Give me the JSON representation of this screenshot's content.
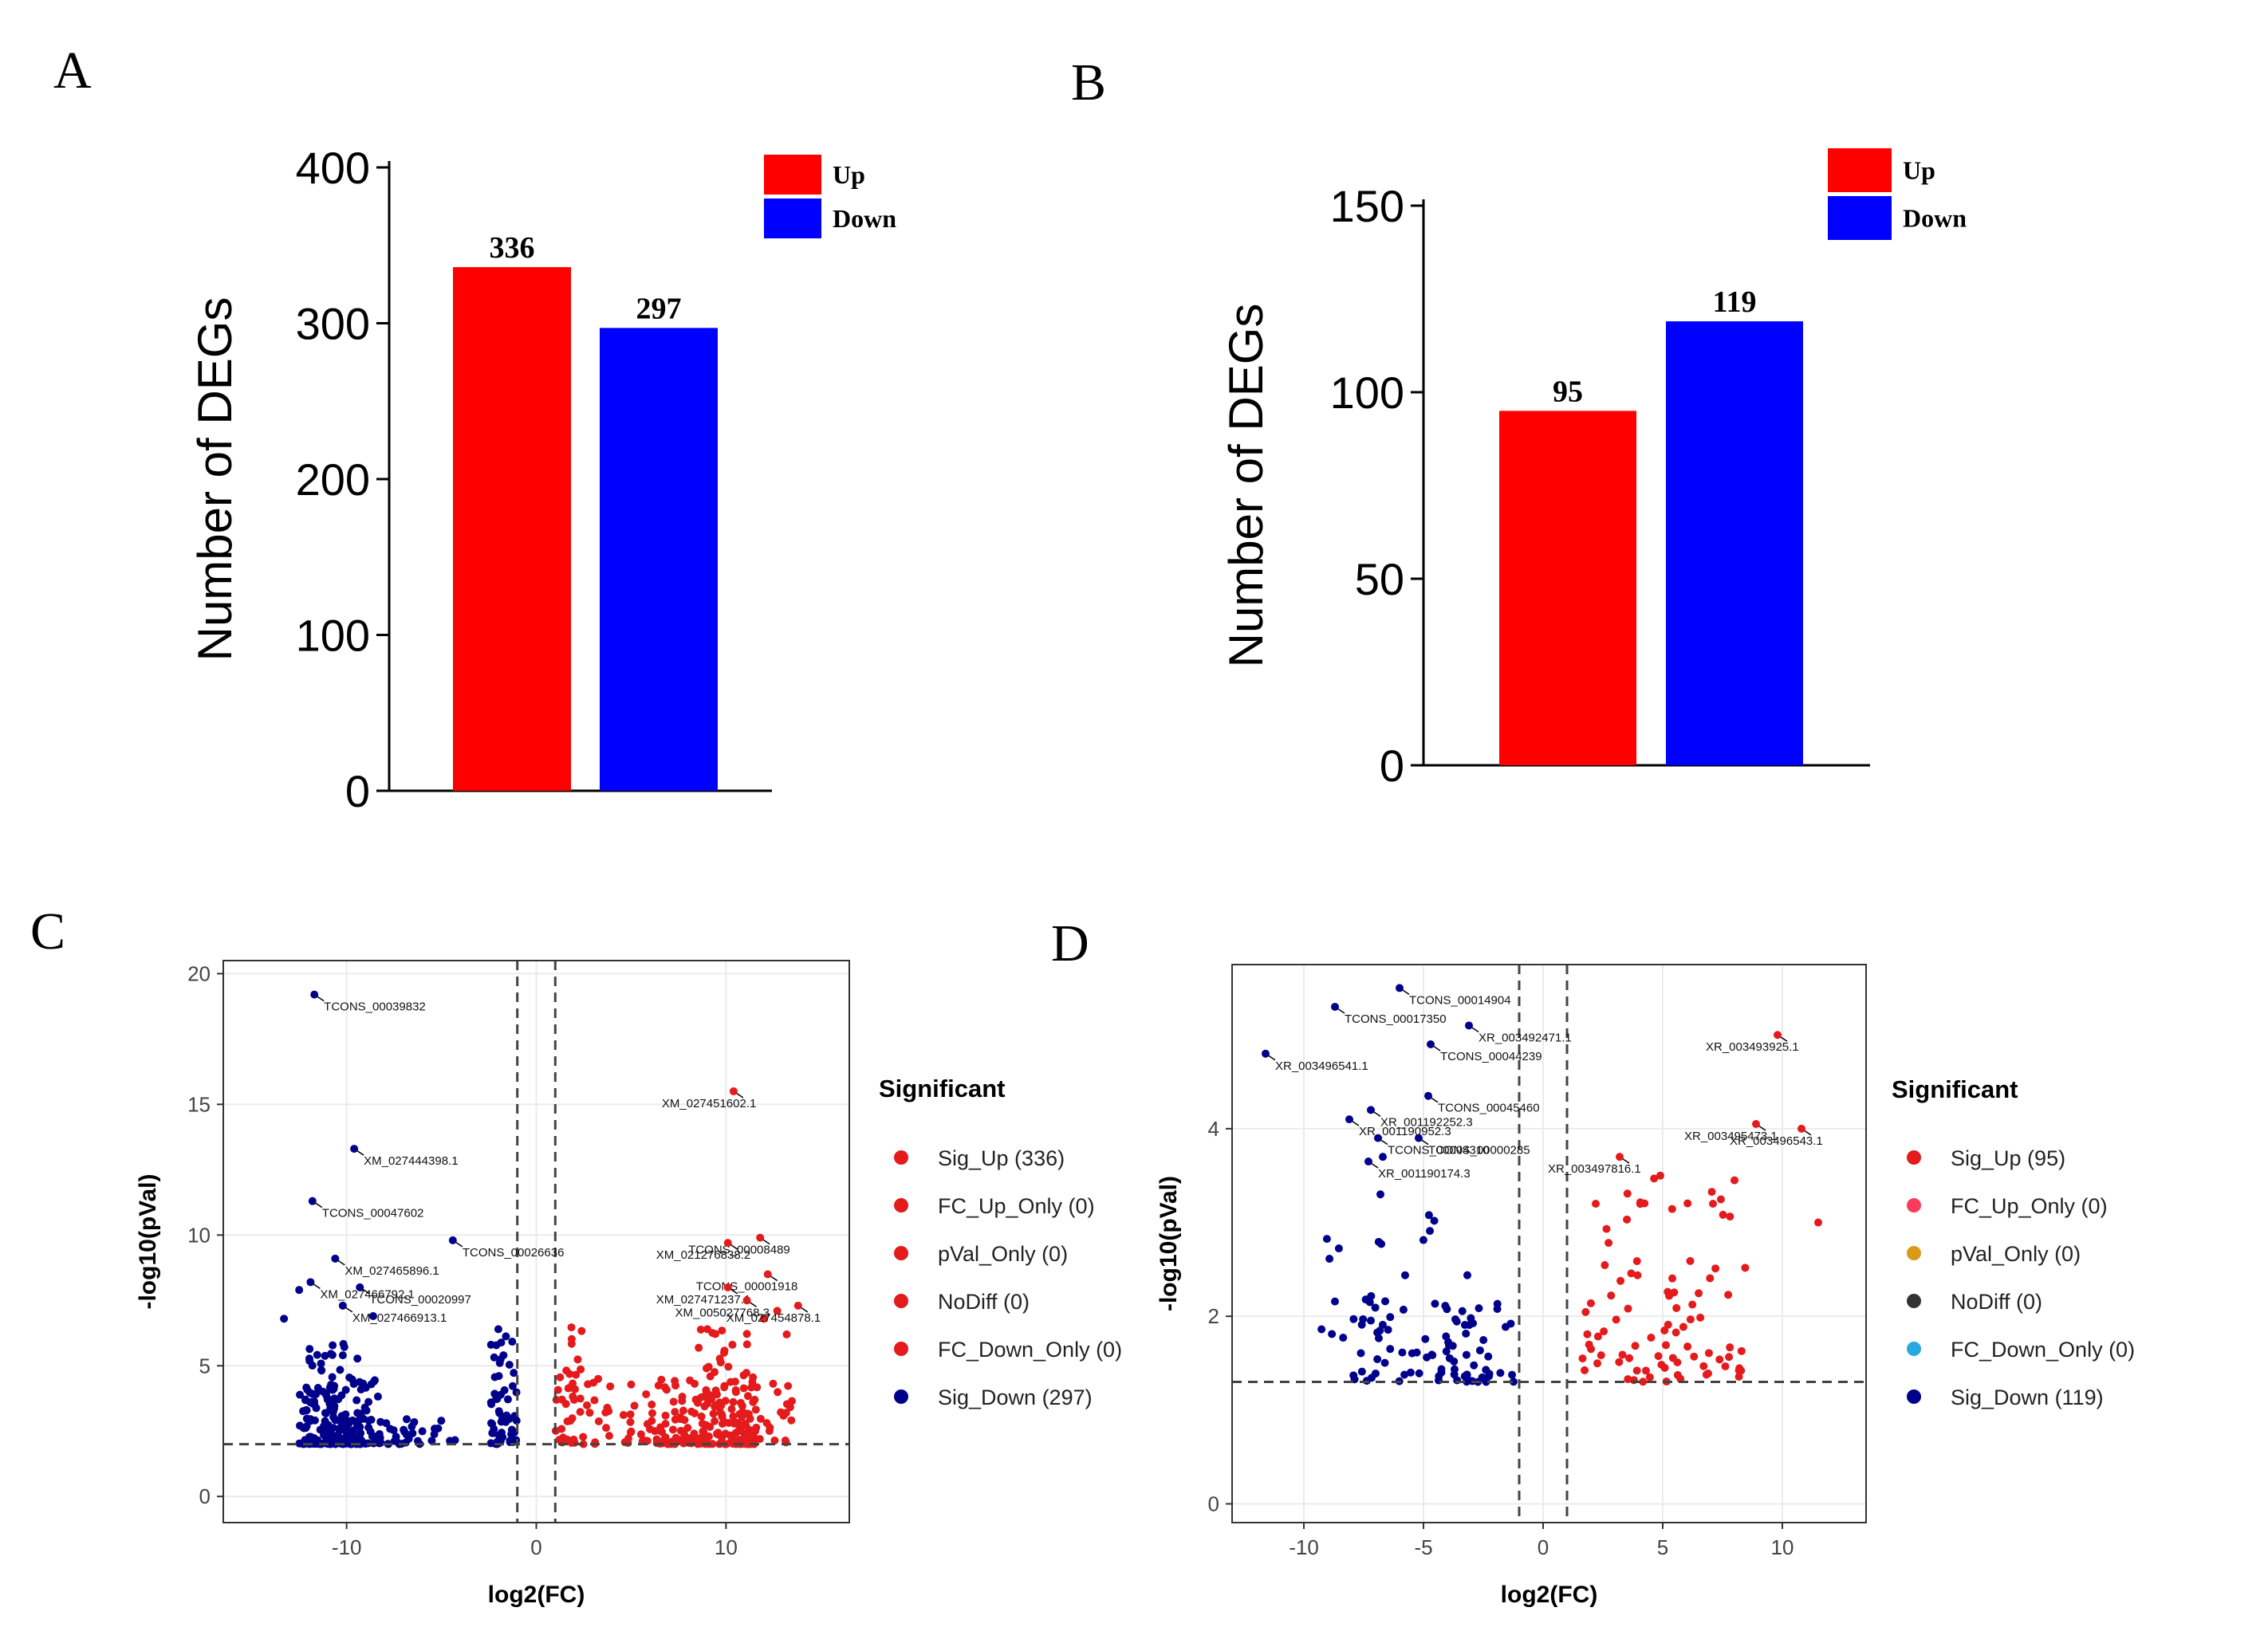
{
  "colors": {
    "up": "#ff0000",
    "down": "#0000ff",
    "sig_up": "#e41a1c",
    "sig_down": "#00008b",
    "fc_up_only": "#ff3b5c",
    "pval_only": "#d99a1a",
    "nodiff": "#333333",
    "fc_down_only": "#29a8e0",
    "axis": "#000000",
    "grid": "#ebebeb"
  },
  "chart_data": [
    {
      "panel": "A",
      "type": "bar",
      "categories": [
        "Up",
        "Down"
      ],
      "values": [
        336,
        297
      ],
      "value_labels": [
        "336",
        "297"
      ],
      "ylabel": "Number of DEGs",
      "ylim": [
        0,
        400
      ],
      "yticks": [
        0,
        100,
        200,
        300,
        400
      ],
      "ytick_labels": [
        "0",
        "100",
        "200",
        "300",
        "400"
      ],
      "legend": [
        {
          "label": "Up",
          "color_key": "up"
        },
        {
          "label": "Down",
          "color_key": "down"
        }
      ],
      "legend_position": "top-right"
    },
    {
      "panel": "B",
      "type": "bar",
      "categories": [
        "Up",
        "Down"
      ],
      "values": [
        95,
        119
      ],
      "value_labels": [
        "95",
        "119"
      ],
      "ylabel": "Number of DEGs",
      "ylim": [
        0,
        150
      ],
      "yticks": [
        0,
        50,
        100,
        150
      ],
      "ytick_labels": [
        "0",
        "50",
        "100",
        "150"
      ],
      "legend": [
        {
          "label": "Up",
          "color_key": "up"
        },
        {
          "label": "Down",
          "color_key": "down"
        }
      ],
      "legend_position": "top-right"
    },
    {
      "panel": "C",
      "type": "scatter",
      "subtype": "volcano",
      "xlabel": "log2(FC)",
      "ylabel": "-log10(pVal)",
      "xlim": [
        -16.5,
        16.5
      ],
      "ylim": [
        -1,
        20.5
      ],
      "xticks": [
        -10,
        0,
        10
      ],
      "xtick_labels": [
        "-10",
        "0",
        "10"
      ],
      "yticks": [
        0,
        5,
        10,
        15,
        20
      ],
      "ytick_labels": [
        "0",
        "5",
        "10",
        "15",
        "20"
      ],
      "thresholds": {
        "vlines": [
          -1,
          1
        ],
        "hline": 2
      },
      "legend_title": "Significant",
      "legend": [
        {
          "label": "Sig_Up (336)",
          "color_key": "sig_up"
        },
        {
          "label": "FC_Up_Only (0)",
          "color_key": "sig_up"
        },
        {
          "label": "pVal_Only (0)",
          "color_key": "sig_up"
        },
        {
          "label": "NoDiff (0)",
          "color_key": "sig_up"
        },
        {
          "label": "FC_Down_Only (0)",
          "color_key": "sig_up"
        },
        {
          "label": "Sig_Down (297)",
          "color_key": "sig_down"
        }
      ],
      "cluster_seed": 11,
      "clusters": [
        {
          "group": "down",
          "n": 150,
          "x": [
            -12.5,
            -8.2
          ],
          "y": [
            2.0,
            4.5
          ],
          "skew": 2.2
        },
        {
          "group": "down",
          "n": 60,
          "x": [
            -12.0,
            -9.0
          ],
          "y": [
            2.0,
            6.0
          ],
          "skew": 1.6
        },
        {
          "group": "down",
          "n": 30,
          "x": [
            -8.2,
            -4.0
          ],
          "y": [
            2.0,
            3.0
          ],
          "skew": 1.5
        },
        {
          "group": "down",
          "n": 55,
          "x": [
            -2.4,
            -1.0
          ],
          "y": [
            2.0,
            6.3
          ],
          "skew": 1.8
        },
        {
          "group": "up",
          "n": 40,
          "x": [
            1.0,
            2.8
          ],
          "y": [
            2.0,
            6.5
          ],
          "skew": 1.8
        },
        {
          "group": "up",
          "n": 30,
          "x": [
            2.8,
            6.0
          ],
          "y": [
            2.0,
            4.5
          ],
          "skew": 1.8
        },
        {
          "group": "up",
          "n": 150,
          "x": [
            6.0,
            11.6
          ],
          "y": [
            2.0,
            4.5
          ],
          "skew": 2.2
        },
        {
          "group": "up",
          "n": 60,
          "x": [
            8.5,
            11.5
          ],
          "y": [
            2.0,
            6.5
          ],
          "skew": 1.6
        },
        {
          "group": "up",
          "n": 25,
          "x": [
            11.0,
            13.5
          ],
          "y": [
            2.0,
            4.5
          ],
          "skew": 1.6
        }
      ],
      "labeled_points": [
        {
          "label": "TCONS_00039832",
          "x": -11.7,
          "y": 19.2,
          "group": "down"
        },
        {
          "label": "XM_027444398.1",
          "x": -9.6,
          "y": 13.3,
          "group": "down"
        },
        {
          "label": "TCONS_00047602",
          "x": -11.8,
          "y": 11.3,
          "group": "down"
        },
        {
          "label": "TCONS_00026636",
          "x": -4.4,
          "y": 9.8,
          "group": "down"
        },
        {
          "label": "XM_027465896.1",
          "x": -10.6,
          "y": 9.1,
          "group": "down"
        },
        {
          "label": "XM_027466792.1",
          "x": -11.9,
          "y": 8.2,
          "group": "down"
        },
        {
          "label": "TCONS_00020997",
          "x": -9.3,
          "y": 8.0,
          "group": "down"
        },
        {
          "label": "XM_027466913.1",
          "x": -10.2,
          "y": 7.3,
          "group": "down"
        },
        {
          "label": "XM_027451602.1",
          "x": 10.4,
          "y": 15.5,
          "group": "up"
        },
        {
          "label": "TCONS_00008489",
          "x": 11.8,
          "y": 9.9,
          "group": "up"
        },
        {
          "label": "XM_021276838.2",
          "x": 10.1,
          "y": 9.7,
          "group": "up"
        },
        {
          "label": "TCONS_00001918",
          "x": 12.2,
          "y": 8.5,
          "group": "up"
        },
        {
          "label": "XM_027471237.1",
          "x": 10.1,
          "y": 8.0,
          "group": "up"
        },
        {
          "label": "XM_005027768.3",
          "x": 11.1,
          "y": 7.5,
          "group": "up"
        },
        {
          "label": "XM_027454878.1",
          "x": 13.8,
          "y": 7.3,
          "group": "up"
        }
      ],
      "extra_points": [
        {
          "x": -13.3,
          "y": 6.8,
          "group": "down"
        },
        {
          "x": -12.5,
          "y": 7.9,
          "group": "down"
        },
        {
          "x": -8.6,
          "y": 6.9,
          "group": "down"
        },
        {
          "x": -10.2,
          "y": 5.4,
          "group": "down"
        },
        {
          "x": -2.0,
          "y": 6.4,
          "group": "down"
        },
        {
          "x": 12.7,
          "y": 7.1,
          "group": "up"
        },
        {
          "x": 13.2,
          "y": 6.2,
          "group": "up"
        },
        {
          "x": 12.0,
          "y": 6.8,
          "group": "up"
        },
        {
          "x": 9.9,
          "y": 5.5,
          "group": "up"
        }
      ]
    },
    {
      "panel": "D",
      "type": "scatter",
      "subtype": "volcano",
      "xlabel": "log2(FC)",
      "ylabel": "-log10(pVal)",
      "xlim": [
        -13,
        13.5
      ],
      "ylim": [
        -0.2,
        5.75
      ],
      "xticks": [
        -10,
        -5,
        0,
        5,
        10
      ],
      "xtick_labels": [
        "-10",
        "-5",
        "0",
        "5",
        "10"
      ],
      "yticks": [
        0,
        2,
        4
      ],
      "ytick_labels": [
        "0",
        "2",
        "4"
      ],
      "thresholds": {
        "vlines": [
          -1,
          1
        ],
        "hline": 1.3
      },
      "legend_title": "Significant",
      "legend": [
        {
          "label": "Sig_Up (95)",
          "color_key": "sig_up"
        },
        {
          "label": "FC_Up_Only (0)",
          "color_key": "fc_up_only"
        },
        {
          "label": "pVal_Only (0)",
          "color_key": "pval_only"
        },
        {
          "label": "NoDiff (0)",
          "color_key": "nodiff"
        },
        {
          "label": "FC_Down_Only (0)",
          "color_key": "fc_down_only"
        },
        {
          "label": "Sig_Down (119)",
          "color_key": "sig_down"
        }
      ],
      "cluster_seed": 23,
      "clusters": [
        {
          "group": "down",
          "n": 78,
          "x": [
            -8.0,
            -1.2
          ],
          "y": [
            1.3,
            2.2
          ],
          "skew": 1.6
        },
        {
          "group": "down",
          "n": 24,
          "x": [
            -9.8,
            -2.2
          ],
          "y": [
            1.6,
            3.1
          ],
          "skew": 1.2
        },
        {
          "group": "up",
          "n": 72,
          "x": [
            1.6,
            8.6
          ],
          "y": [
            1.3,
            2.6
          ],
          "skew": 1.4
        },
        {
          "group": "up",
          "n": 14,
          "x": [
            2.4,
            8.4
          ],
          "y": [
            2.6,
            3.6
          ],
          "skew": 1.0
        }
      ],
      "labeled_points": [
        {
          "label": "TCONS_00014904",
          "x": -6.0,
          "y": 5.5,
          "group": "down"
        },
        {
          "label": "TCONS_00017350",
          "x": -8.7,
          "y": 5.3,
          "group": "down"
        },
        {
          "label": "XR_003492471.1",
          "x": -3.1,
          "y": 5.1,
          "group": "down"
        },
        {
          "label": "XR_003496541.1",
          "x": -11.6,
          "y": 4.8,
          "group": "down"
        },
        {
          "label": "TCONS_00044239",
          "x": -4.7,
          "y": 4.9,
          "group": "down"
        },
        {
          "label": "XR_001192252.3",
          "x": -7.2,
          "y": 4.2,
          "group": "down"
        },
        {
          "label": "TCONS_00045460",
          "x": -4.8,
          "y": 4.35,
          "group": "down"
        },
        {
          "label": "XR_001190952.3",
          "x": -8.1,
          "y": 4.1,
          "group": "down"
        },
        {
          "label": "TCONS_00004310",
          "x": -6.9,
          "y": 3.9,
          "group": "down"
        },
        {
          "label": "TCONS_00000285",
          "x": -5.2,
          "y": 3.9,
          "group": "down"
        },
        {
          "label": "XR_001190174.3",
          "x": -7.3,
          "y": 3.65,
          "group": "down"
        },
        {
          "label": "XR_003493925.1",
          "x": 9.8,
          "y": 5.0,
          "group": "up"
        },
        {
          "label": "XR_003495473.1",
          "x": 8.9,
          "y": 4.05,
          "group": "up"
        },
        {
          "label": "XR_003496543.1",
          "x": 10.8,
          "y": 4.0,
          "group": "up"
        },
        {
          "label": "XR_003497816.1",
          "x": 3.2,
          "y": 3.7,
          "group": "up"
        }
      ],
      "extra_points": [
        {
          "x": -6.7,
          "y": 3.7,
          "group": "down"
        },
        {
          "x": -6.8,
          "y": 3.3,
          "group": "down"
        },
        {
          "x": 11.5,
          "y": 3.0,
          "group": "up"
        },
        {
          "x": 8.0,
          "y": 3.45,
          "group": "up"
        },
        {
          "x": 4.9,
          "y": 3.5,
          "group": "up"
        },
        {
          "x": 7.1,
          "y": 3.2,
          "group": "up"
        },
        {
          "x": 2.2,
          "y": 3.2,
          "group": "up"
        }
      ]
    }
  ]
}
